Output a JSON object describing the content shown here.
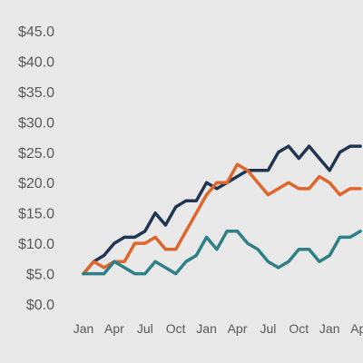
{
  "chart_data": {
    "type": "line",
    "title": "",
    "xlabel": "",
    "ylabel": "",
    "ylim": [
      0,
      45
    ],
    "y_ticks": [
      "$0.0",
      "$5.0",
      "$10.0",
      "$15.0",
      "$20.0",
      "$25.0",
      "$30.0",
      "$35.0",
      "$40.0",
      "$45.0"
    ],
    "y_tick_values": [
      0,
      5,
      10,
      15,
      20,
      25,
      30,
      35,
      40,
      45
    ],
    "x_ticks": [
      "Jan",
      "Apr",
      "Jul",
      "Oct",
      "Jan",
      "Apr",
      "Jul",
      "Oct",
      "Jan",
      "Apr"
    ],
    "x_tick_positions": [
      0,
      3,
      6,
      9,
      12,
      15,
      18,
      21,
      24,
      27
    ],
    "x": [
      0,
      1,
      2,
      3,
      4,
      5,
      6,
      7,
      8,
      9,
      10,
      11,
      12,
      13,
      14,
      15,
      16,
      17,
      18,
      19,
      20,
      21,
      22,
      23,
      24,
      25,
      26,
      27
    ],
    "grid": false,
    "legend": "none",
    "series": [
      {
        "color": "#1f3552",
        "values": [
          5,
          7,
          8,
          10,
          11,
          11,
          12,
          15,
          13,
          16,
          17,
          17,
          20,
          19,
          20,
          21,
          22,
          22,
          22,
          25,
          26,
          24,
          26,
          24,
          22,
          25,
          26,
          26
        ]
      },
      {
        "color": "#e0652b",
        "values": [
          5,
          7,
          6,
          7,
          7,
          10,
          10,
          11,
          9,
          9,
          12,
          15,
          18,
          20,
          20,
          23,
          22,
          20,
          18,
          19,
          20,
          19,
          19,
          21,
          20,
          18,
          19,
          19
        ]
      },
      {
        "color": "#2e7f86",
        "values": [
          5,
          5,
          5,
          7,
          6,
          5,
          5,
          7,
          6,
          5,
          7,
          8,
          11,
          9,
          12,
          12,
          10,
          9,
          7,
          6,
          7,
          9,
          9,
          7,
          8,
          11,
          11,
          12
        ]
      }
    ]
  }
}
